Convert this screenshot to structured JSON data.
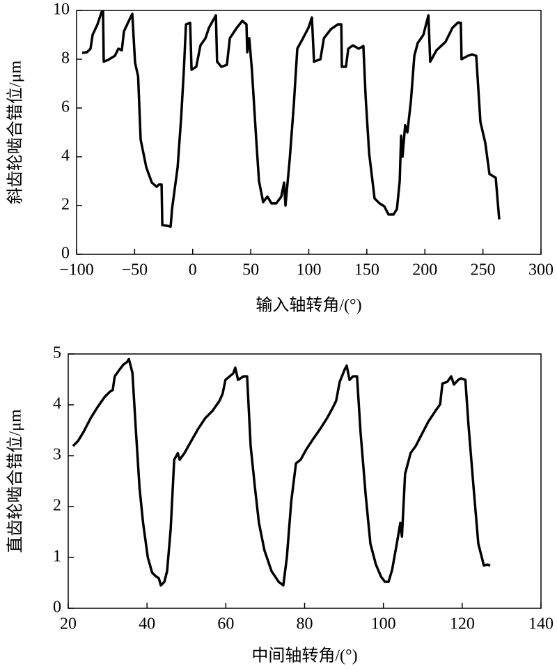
{
  "chart_data": [
    {
      "type": "line",
      "x_label": "输入轴转角/(°)",
      "y_label": "斜齿轮啮合错位/μm",
      "color": "#000000",
      "xlim": [
        -100,
        300
      ],
      "xticks": [
        {
          "value": -100,
          "label": "−100"
        },
        {
          "value": -50,
          "label": "−50"
        },
        0,
        50,
        100,
        150,
        200,
        250,
        300
      ],
      "ylim": [
        0,
        10
      ],
      "yticks": [
        0,
        2,
        4,
        6,
        8,
        10
      ],
      "x": [
        -95.2,
        -91,
        -88,
        -86.2,
        -82,
        -78.4,
        -77.2,
        -76.6,
        -73,
        -67,
        -64,
        -61,
        -59.2,
        -55,
        -52,
        -49.6,
        -47,
        -44.8,
        -40,
        -35.2,
        -31,
        -29.2,
        -26.8,
        -26.2,
        -22,
        -19,
        -17.8,
        -13,
        -10,
        -7.6,
        -5.8,
        -2.2,
        -1,
        3.1,
        6.7,
        11,
        14,
        20,
        21,
        24.7,
        29.5,
        32,
        38,
        42.7,
        46.3,
        47,
        48.7,
        51,
        54.7,
        57.1,
        60.7,
        64.3,
        67.9,
        72,
        76.3,
        78.7,
        79.9,
        83.5,
        87.1,
        90.1,
        95,
        99.7,
        102.7,
        104.5,
        110,
        113,
        119,
        125,
        128,
        128.5,
        132,
        134,
        138,
        143,
        147,
        149,
        152,
        156.7,
        161,
        165,
        168.7,
        172.9,
        175.9,
        178.3,
        179.5,
        180.7,
        183,
        184.9,
        188,
        190.9,
        193.8,
        198.7,
        203,
        204.6,
        210,
        217.8,
        223.8,
        228.6,
        231,
        231.6,
        237,
        240.6,
        244.2,
        247.8,
        252,
        255.6,
        261,
        264
      ],
      "values": [
        8.26,
        8.29,
        8.43,
        9.0,
        9.43,
        9.94,
        9.97,
        7.9,
        7.97,
        8.14,
        8.43,
        8.37,
        9.14,
        9.57,
        9.86,
        7.86,
        7.29,
        4.71,
        3.57,
        2.94,
        2.77,
        2.86,
        2.86,
        1.2,
        1.17,
        1.14,
        1.86,
        3.57,
        5.57,
        7.57,
        9.43,
        9.49,
        7.57,
        7.69,
        8.57,
        8.86,
        9.29,
        9.8,
        7.9,
        7.69,
        7.77,
        8.86,
        9.29,
        9.57,
        9.43,
        8.29,
        8.86,
        7.57,
        4.71,
        3.0,
        2.14,
        2.37,
        2.09,
        2.09,
        2.37,
        2.94,
        2.0,
        3.86,
        6.14,
        8.43,
        8.86,
        9.29,
        9.71,
        7.9,
        8.0,
        8.86,
        9.23,
        9.43,
        9.43,
        7.69,
        7.69,
        8.43,
        8.57,
        8.43,
        8.54,
        6.43,
        4.14,
        2.29,
        2.09,
        1.97,
        1.63,
        1.63,
        1.86,
        3.0,
        4.86,
        4.0,
        5.29,
        5.0,
        6.29,
        8.14,
        8.66,
        9.0,
        9.8,
        7.9,
        8.37,
        8.71,
        9.29,
        9.51,
        9.49,
        8.0,
        8.14,
        8.2,
        8.14,
        5.43,
        4.57,
        3.29,
        3.14,
        1.43
      ]
    },
    {
      "type": "line",
      "x_label": "中间轴转角/(°)",
      "y_label": "直齿轮啮合错位/μm",
      "color": "#000000",
      "xlim": [
        20,
        140
      ],
      "xticks": [
        20,
        40,
        60,
        80,
        100,
        120,
        140
      ],
      "ylim": [
        0,
        5
      ],
      "yticks": [
        0,
        1,
        2,
        3,
        4,
        5
      ],
      "x": [
        21.2,
        22.5,
        23.9,
        25.7,
        27.4,
        29.2,
        30.6,
        31.3,
        31.8,
        33.1,
        34,
        34.9,
        35.4,
        36.3,
        37.2,
        38.1,
        39,
        40.2,
        41.3,
        42.1,
        43,
        43.5,
        44.4,
        45.1,
        46,
        46.9,
        47.8,
        48.3,
        49.5,
        51.3,
        53,
        54.8,
        56.6,
        58.4,
        59.2,
        59.9,
        61.9,
        62.4,
        63.1,
        64.5,
        65.4,
        66.3,
        67.4,
        68.4,
        69.8,
        71.6,
        73.4,
        74.6,
        75.5,
        76.6,
        77.8,
        79,
        80.4,
        82.2,
        84,
        85.7,
        87.2,
        88,
        88.9,
        90.2,
        90.7,
        91.4,
        92.3,
        93.3,
        94.2,
        95.5,
        96.7,
        98.1,
        99.4,
        100.4,
        101.3,
        102.2,
        103.4,
        104.3,
        104.7,
        105.5,
        106.9,
        108.2,
        109.6,
        111.4,
        113.2,
        114.4,
        115,
        116.2,
        117.2,
        117.9,
        119,
        119.7,
        120.8,
        121.6,
        122.9,
        124.1,
        125.5,
        126.4,
        127.1
      ],
      "values": [
        3.19,
        3.29,
        3.47,
        3.74,
        3.95,
        4.15,
        4.26,
        4.29,
        4.56,
        4.7,
        4.79,
        4.84,
        4.9,
        4.63,
        3.47,
        2.37,
        1.68,
        1.0,
        0.7,
        0.64,
        0.59,
        0.45,
        0.52,
        0.73,
        1.55,
        2.92,
        3.05,
        2.92,
        3.05,
        3.3,
        3.53,
        3.74,
        3.88,
        4.08,
        4.22,
        4.49,
        4.62,
        4.73,
        4.49,
        4.56,
        4.56,
        3.19,
        2.37,
        1.68,
        1.14,
        0.73,
        0.52,
        0.45,
        1.0,
        2.1,
        2.85,
        2.92,
        3.12,
        3.33,
        3.53,
        3.74,
        3.95,
        4.08,
        4.45,
        4.7,
        4.77,
        4.49,
        4.56,
        4.56,
        3.47,
        2.23,
        1.27,
        0.86,
        0.62,
        0.52,
        0.52,
        0.75,
        1.27,
        1.68,
        1.41,
        2.64,
        3.05,
        3.19,
        3.4,
        3.67,
        3.88,
        4.01,
        4.42,
        4.45,
        4.56,
        4.4,
        4.49,
        4.52,
        4.49,
        3.6,
        2.37,
        1.27,
        0.84,
        0.86,
        0.84
      ]
    }
  ]
}
